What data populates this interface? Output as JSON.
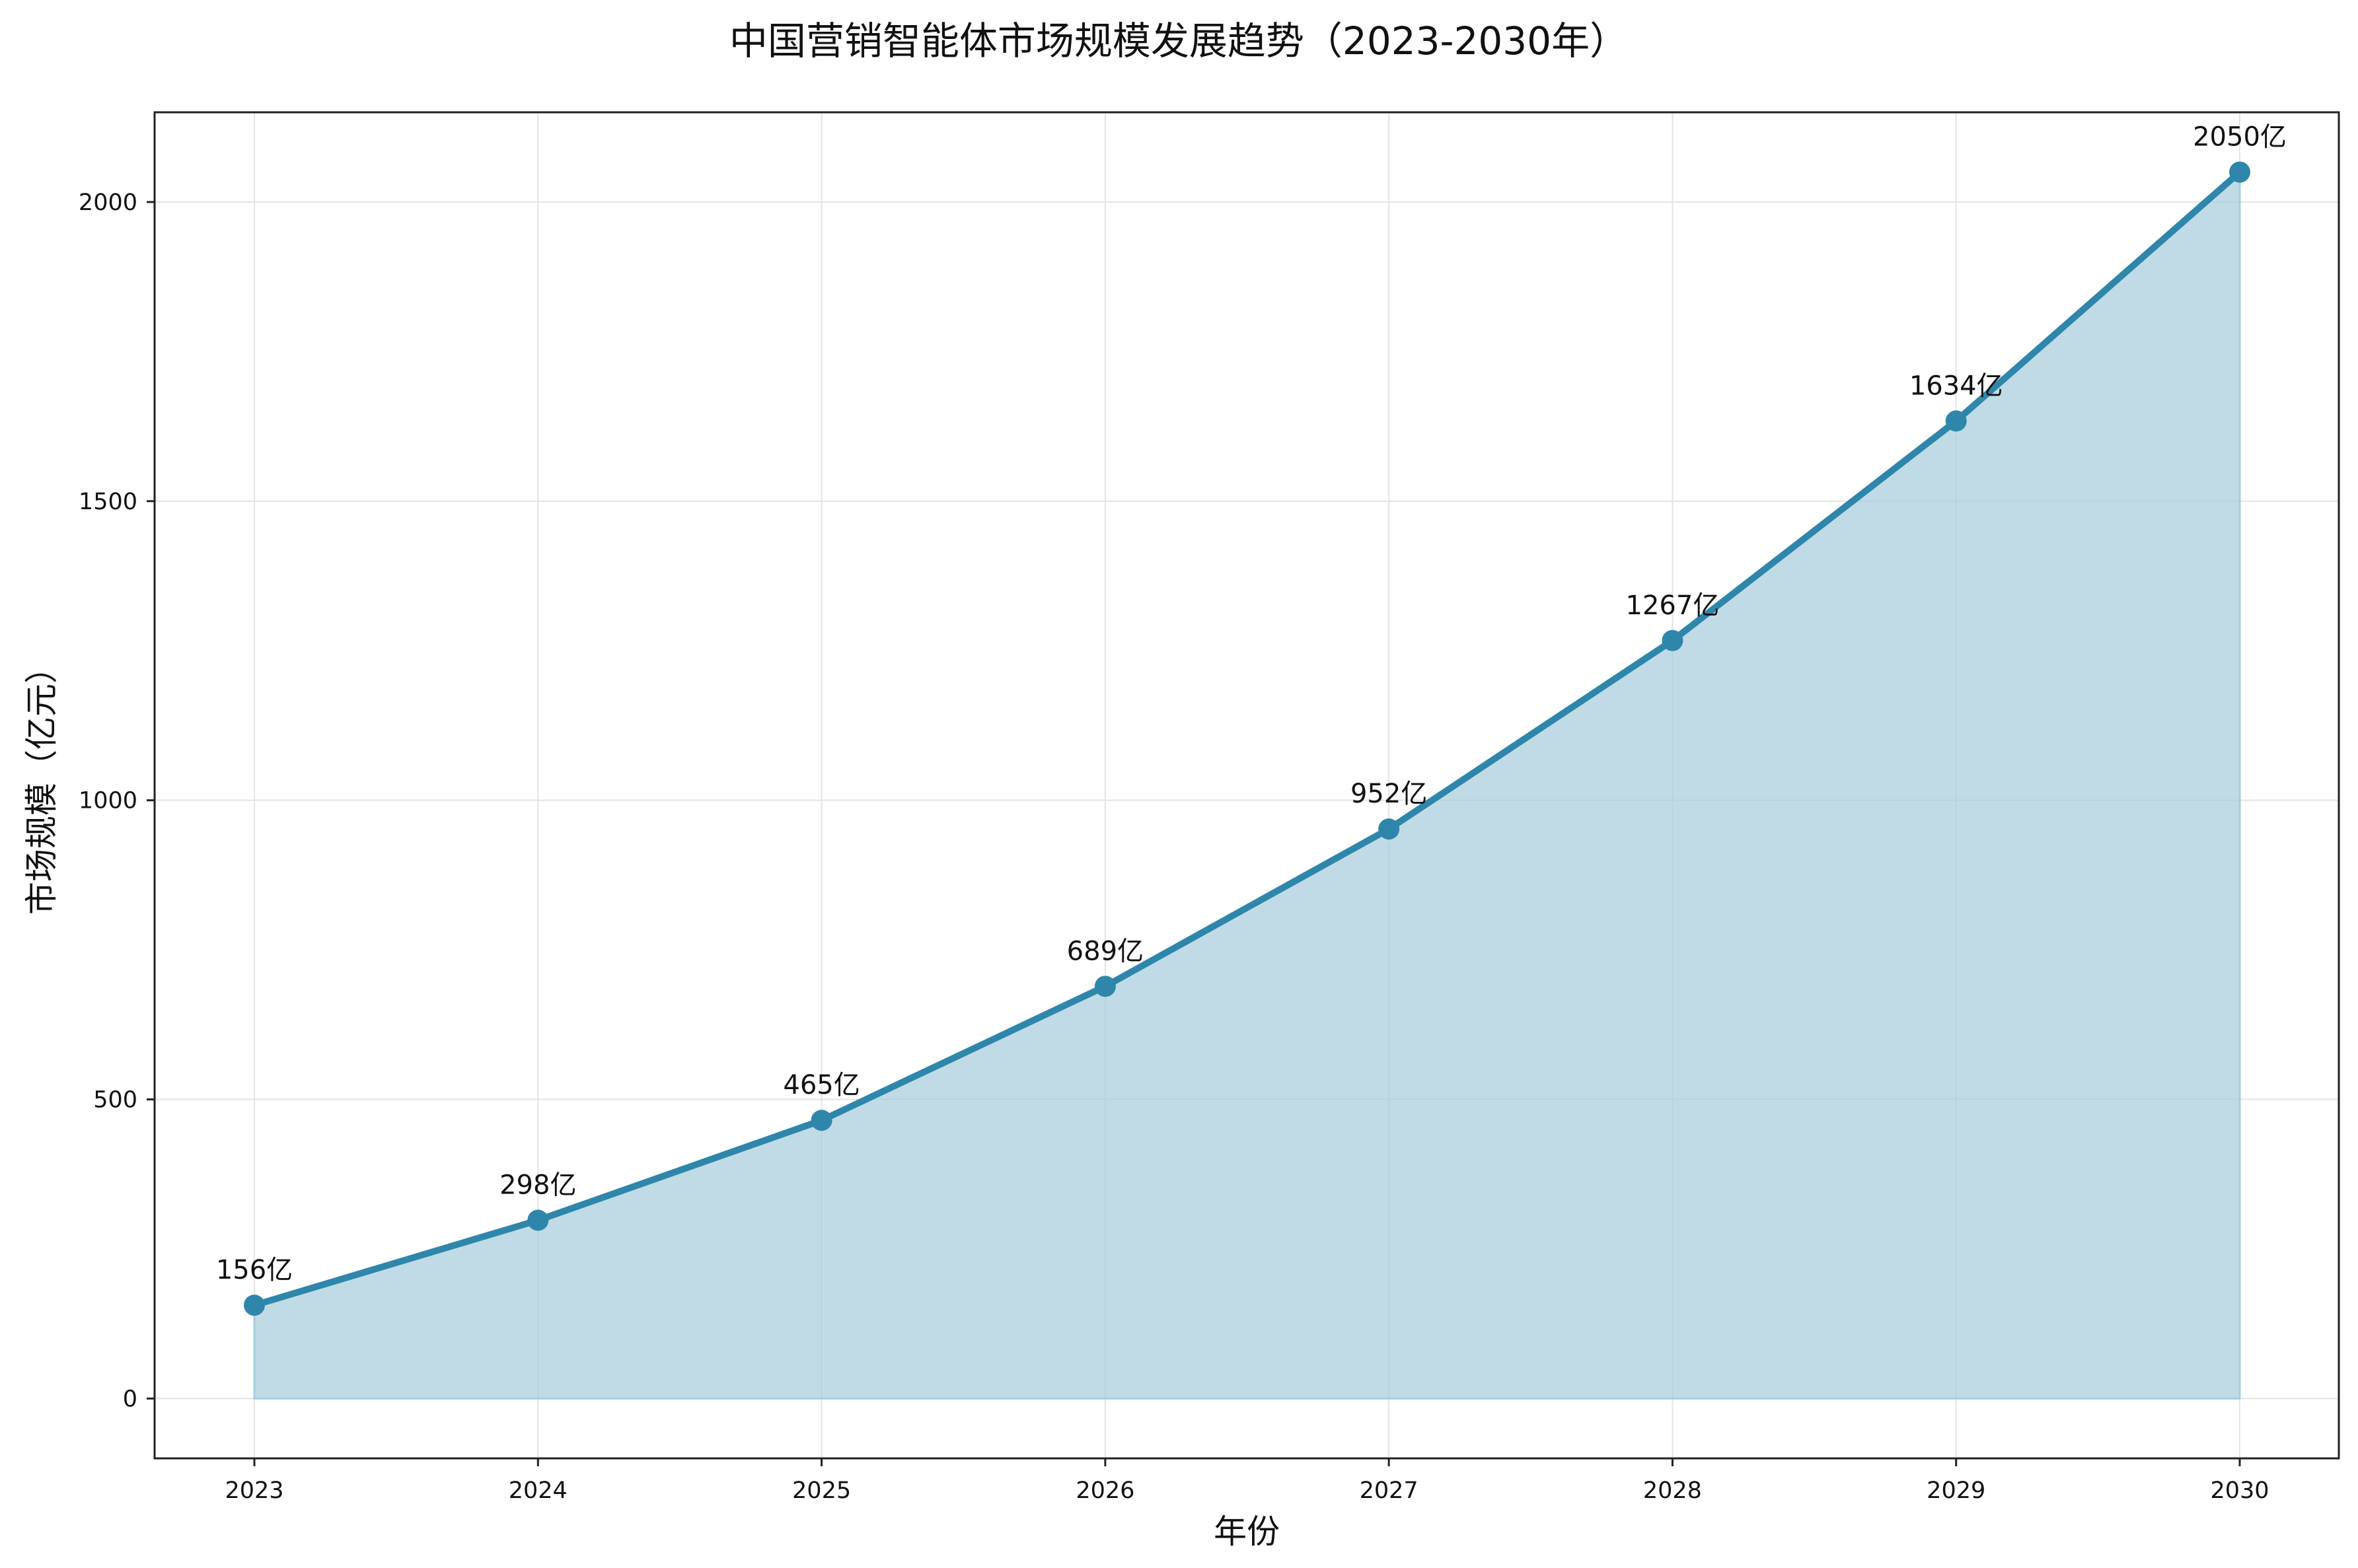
{
  "chart_data": {
    "type": "area",
    "title": "中国营销智能体市场规模发展趋势（2023-2030年）",
    "xlabel": "年份",
    "ylabel": "市场规模（亿元）",
    "categories": [
      "2023",
      "2024",
      "2025",
      "2026",
      "2027",
      "2028",
      "2029",
      "2030"
    ],
    "values": [
      156,
      298,
      465,
      689,
      952,
      1267,
      1634,
      2050
    ],
    "data_labels": [
      "156亿",
      "298亿",
      "465亿",
      "689亿",
      "952亿",
      "1267亿",
      "1634亿",
      "2050亿"
    ],
    "ylim": [
      -100,
      2150
    ],
    "yticks": [
      0,
      500,
      1000,
      1500,
      2000
    ],
    "grid": true,
    "legend": "none",
    "colors": {
      "line": "#2e86ab",
      "fill": "#a8cddb"
    }
  }
}
